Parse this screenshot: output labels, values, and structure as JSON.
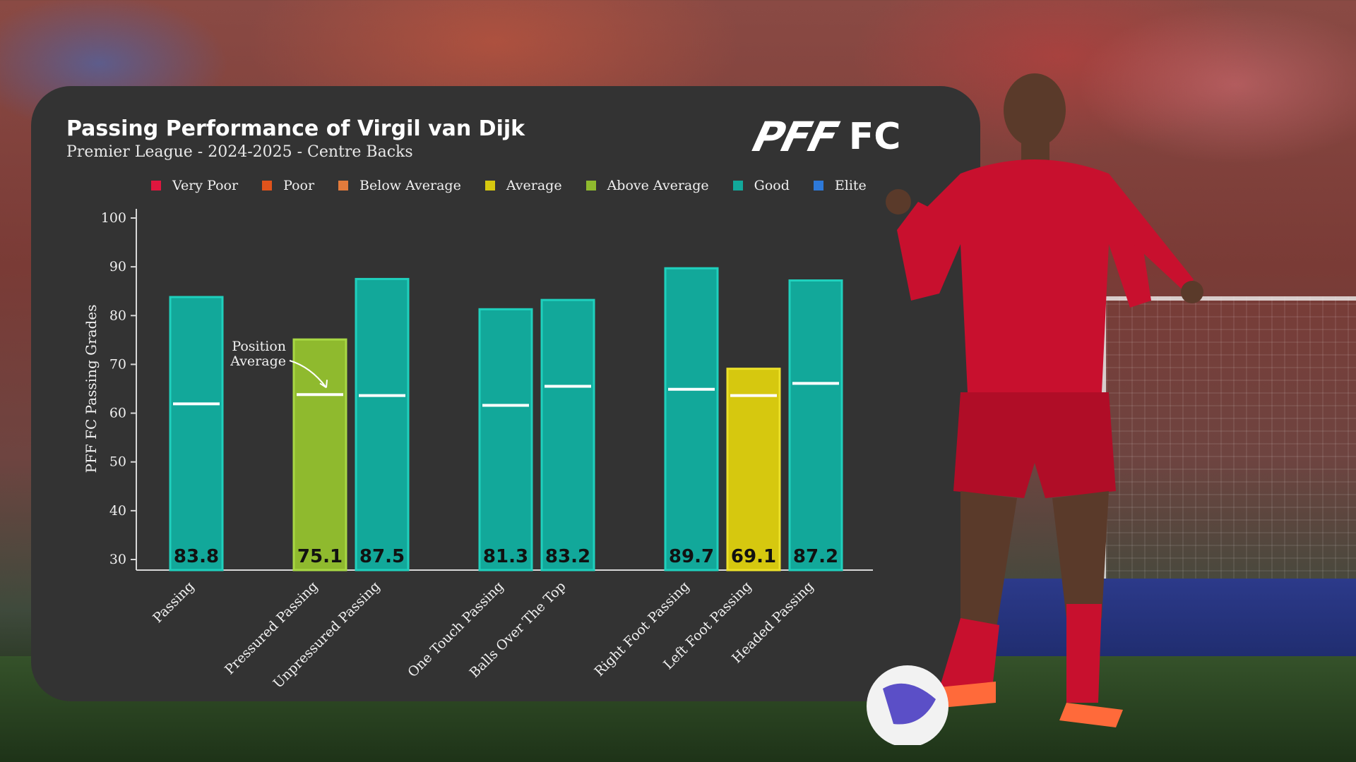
{
  "title": "Passing Performance of Virgil van Dijk",
  "subtitle": "Premier League - 2024-2025 - Centre Backs",
  "brand": {
    "mark": "PFF",
    "suffix": "FC"
  },
  "legend": [
    {
      "label": "Very Poor",
      "color": "#e0163e"
    },
    {
      "label": "Poor",
      "color": "#e0531b"
    },
    {
      "label": "Below Average",
      "color": "#e37b3c"
    },
    {
      "label": "Average",
      "color": "#d6c80f"
    },
    {
      "label": "Above Average",
      "color": "#8fba2e"
    },
    {
      "label": "Good",
      "color": "#12a89a"
    },
    {
      "label": "Elite",
      "color": "#2d79d9"
    }
  ],
  "colors": {
    "panel": "#333333",
    "good": "#12a89a",
    "good_border": "#1fd0bd",
    "average_line": "#ffffff"
  },
  "chart_data": {
    "type": "bar",
    "ylabel": "PFF FC Passing Grades",
    "ylim": [
      30,
      100
    ],
    "yticks": [
      30,
      40,
      50,
      60,
      70,
      80,
      90,
      100
    ],
    "categories": [
      "Passing",
      "Pressured Passing",
      "Unpressured Passing",
      "One Touch Passing",
      "Balls Over The Top",
      "Right Foot Passing",
      "Left Foot Passing",
      "Headed Passing"
    ],
    "values": [
      83.8,
      75.1,
      87.5,
      81.3,
      83.2,
      89.7,
      69.1,
      87.2
    ],
    "value_labels": [
      "83.8",
      "75.1",
      "87.5",
      "81.3",
      "83.2",
      "89.7",
      "69.1",
      "87.2"
    ],
    "grade_band": [
      "Good",
      "Above Average",
      "Good",
      "Good",
      "Good",
      "Good",
      "Average",
      "Good"
    ],
    "position_average": [
      61.9,
      63.8,
      63.6,
      61.6,
      65.5,
      64.9,
      63.6,
      66.1
    ],
    "groups": [
      [
        0
      ],
      [
        1,
        2
      ],
      [
        3,
        4
      ],
      [
        5,
        6,
        7
      ]
    ],
    "annotation": {
      "text_line1": "Position",
      "text_line2": "Average",
      "target_index": 1
    },
    "grid": false
  }
}
